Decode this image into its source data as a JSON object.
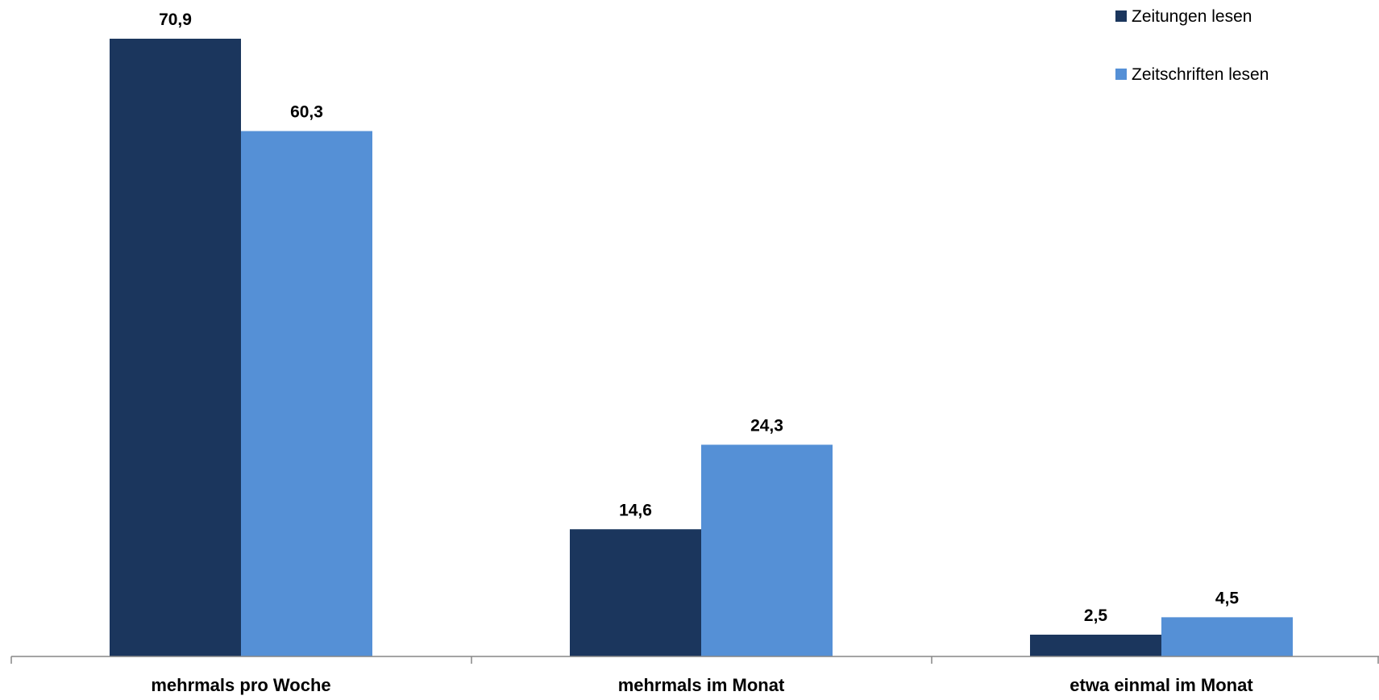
{
  "chart_data": {
    "type": "bar",
    "categories": [
      "mehrmals pro Woche",
      "mehrmals im Monat",
      "etwa einmal im Monat"
    ],
    "series": [
      {
        "name": "Zeitungen lesen",
        "values": [
          70.9,
          14.6,
          2.5
        ],
        "color": "#1b365d",
        "labels": [
          "70,9",
          "14,6",
          "2,5"
        ]
      },
      {
        "name": "Zeitschriften lesen",
        "values": [
          60.3,
          24.3,
          4.5
        ],
        "color": "#5590d6",
        "labels": [
          "60,3",
          "24,3",
          "4,5"
        ]
      }
    ],
    "ylim": [
      0,
      70.9
    ],
    "grid": false,
    "legend_position": "top-right",
    "axis_color": "#868686"
  }
}
